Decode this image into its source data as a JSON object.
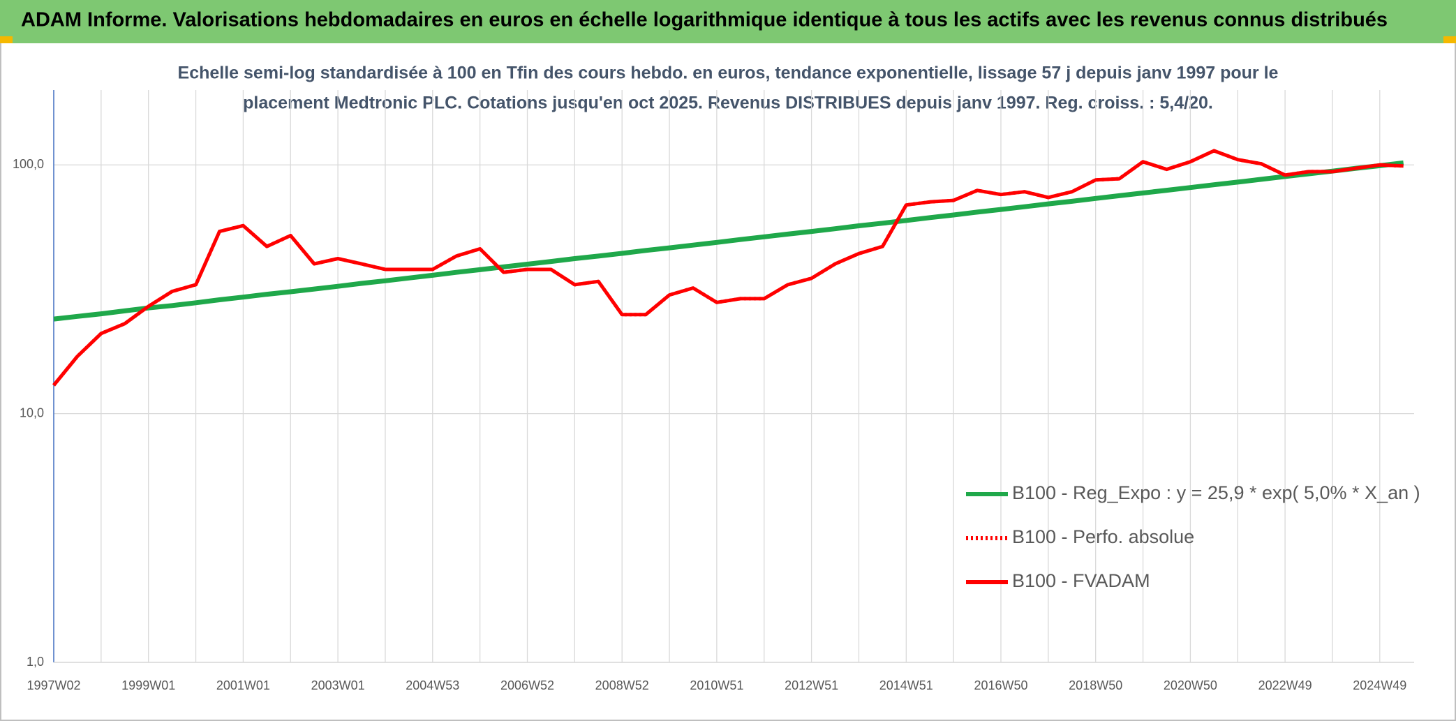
{
  "chart_data": {
    "type": "line",
    "title": "ADAM Informe. Valorisations hebdomadaires en euros en échelle logarithmique identique à tous les actifs avec les revenus connus distribués",
    "subtitle": [
      "Echelle semi-log standardisée à 100 en Tfin des cours hebdo. en euros, tendance exponentielle, lissage 57 j depuis janv 1997 pour le",
      "placement Medtronic PLC. Cotations jusqu'en oct 2025. Revenus DISTRIBUES depuis janv 1997. Reg. croiss. : 5,4/20."
    ],
    "categories": [
      "1997W02",
      null,
      null,
      null,
      "1999W01",
      null,
      null,
      null,
      "2001W01",
      null,
      null,
      null,
      "2003W01",
      null,
      null,
      null,
      "2004W53",
      null,
      null,
      null,
      "2006W52",
      null,
      null,
      null,
      "2008W52",
      null,
      null,
      null,
      "2010W51",
      null,
      null,
      null,
      "2012W51",
      null,
      null,
      null,
      "2014W51",
      null,
      null,
      null,
      "2016W50",
      null,
      null,
      null,
      "2018W50",
      null,
      null,
      null,
      "2020W50",
      null,
      null,
      null,
      "2022W49",
      null,
      null,
      null,
      "2024W49",
      null
    ],
    "log_scale": true,
    "grid": true,
    "legend": "right",
    "ylim": [
      1,
      200
    ],
    "yticks": [
      {
        "value": 1,
        "label": "1,0"
      },
      {
        "value": 10,
        "label": "10,0"
      },
      {
        "value": 100,
        "label": "100,0"
      }
    ],
    "series": [
      {
        "name": "B100 - Reg_Expo : y = 25,9 * exp( 5,0% *  X_an )",
        "color": "#1fa84a",
        "line_style": "solid",
        "values": [
          24.0,
          24.6,
          25.2,
          25.9,
          26.6,
          27.2,
          27.9,
          28.7,
          29.4,
          30.2,
          30.9,
          31.7,
          32.5,
          33.4,
          34.2,
          35.1,
          36.0,
          37.0,
          37.9,
          38.9,
          39.9,
          40.9,
          42.0,
          43.0,
          44.1,
          45.3,
          46.4,
          47.6,
          48.8,
          50.1,
          51.4,
          52.7,
          54.0,
          55.4,
          56.9,
          58.3,
          59.8,
          61.4,
          62.9,
          64.6,
          66.2,
          67.9,
          69.7,
          71.4,
          73.3,
          75.2,
          77.1,
          79.1,
          81.1,
          83.2,
          85.3,
          87.5,
          89.8,
          92.1,
          94.4,
          96.9,
          99.3,
          101.9
        ]
      },
      {
        "name": "B100 - Perfo. absolue",
        "color": "#ff0000",
        "line_style": "dotted",
        "values": [
          13,
          17,
          21,
          23,
          27,
          31,
          33,
          54,
          57,
          47,
          52,
          40,
          42,
          40,
          38,
          38,
          38,
          43,
          46,
          37,
          38,
          38,
          33,
          34,
          25,
          25,
          30,
          32,
          28,
          29,
          29,
          33,
          35,
          40,
          44,
          47,
          69,
          71,
          72,
          79,
          76,
          78,
          74,
          78,
          87,
          88,
          103,
          96,
          103,
          114,
          105,
          101,
          91,
          94,
          94,
          97,
          100,
          99
        ]
      },
      {
        "name": "B100 - FVADAM",
        "color": "#ff0000",
        "line_style": "solid",
        "values": [
          13,
          17,
          21,
          23,
          27,
          31,
          33,
          54,
          57,
          47,
          52,
          40,
          42,
          40,
          38,
          38,
          38,
          43,
          46,
          37,
          38,
          38,
          33,
          34,
          25,
          25,
          30,
          32,
          28,
          29,
          29,
          33,
          35,
          40,
          44,
          47,
          69,
          71,
          72,
          79,
          76,
          78,
          74,
          78,
          87,
          88,
          103,
          96,
          103,
          114,
          105,
          101,
          91,
          94,
          94,
          97,
          100,
          99
        ]
      }
    ]
  }
}
